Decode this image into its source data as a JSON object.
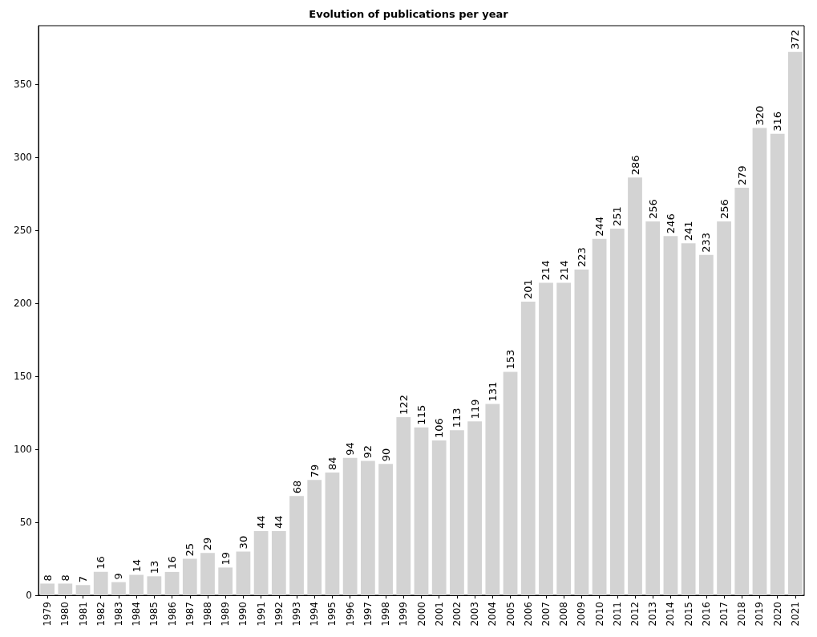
{
  "chart_data": {
    "type": "bar",
    "title": "Evolution of publications per year",
    "categories": [
      "1979",
      "1980",
      "1981",
      "1982",
      "1983",
      "1984",
      "1985",
      "1986",
      "1987",
      "1988",
      "1989",
      "1990",
      "1991",
      "1992",
      "1993",
      "1994",
      "1995",
      "1996",
      "1997",
      "1998",
      "1999",
      "2000",
      "2001",
      "2002",
      "2003",
      "2004",
      "2005",
      "2006",
      "2007",
      "2008",
      "2009",
      "2010",
      "2011",
      "2012",
      "2013",
      "2014",
      "2015",
      "2016",
      "2017",
      "2018",
      "2019",
      "2020",
      "2021"
    ],
    "values": [
      8,
      8,
      7,
      16,
      9,
      14,
      13,
      16,
      25,
      29,
      19,
      30,
      44,
      44,
      68,
      79,
      84,
      94,
      92,
      90,
      122,
      115,
      106,
      113,
      119,
      131,
      153,
      201,
      214,
      214,
      223,
      244,
      251,
      286,
      256,
      246,
      241,
      233,
      256,
      279,
      320,
      316,
      372
    ],
    "color": "#d3d3d3",
    "ylim": [
      0,
      390
    ],
    "yticks": [
      0,
      50,
      100,
      150,
      200,
      250,
      300,
      350
    ],
    "grid": false,
    "data_labels": true
  }
}
